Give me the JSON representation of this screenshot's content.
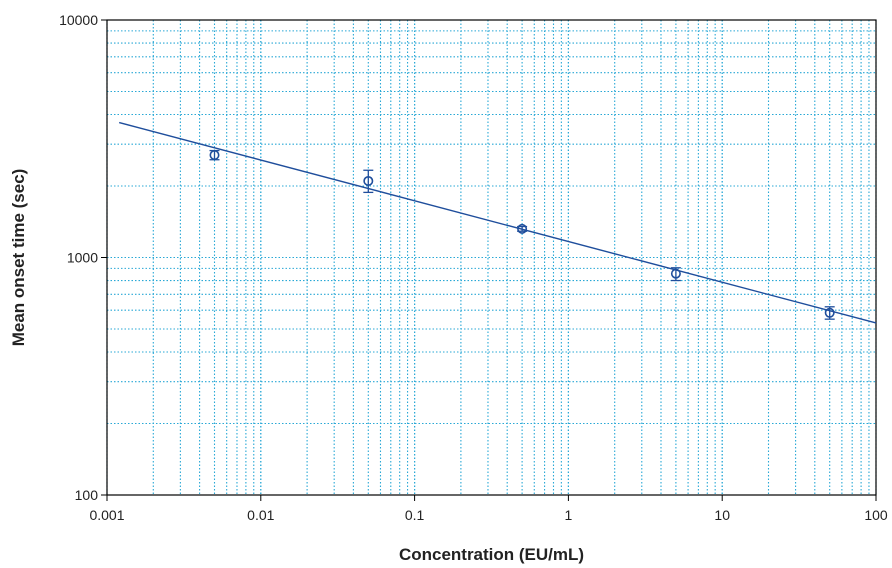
{
  "chart_data": {
    "type": "scatter",
    "title": "",
    "xlabel": "Concentration (EU/mL)",
    "ylabel": "Mean onset time (sec)",
    "x_scale": "log",
    "y_scale": "log",
    "xlim": [
      0.001,
      100
    ],
    "ylim": [
      100,
      10000
    ],
    "grid": true,
    "legend": "none",
    "x_ticks": [
      {
        "value": 0.001,
        "label": "0.001"
      },
      {
        "value": 0.01,
        "label": "0.01"
      },
      {
        "value": 0.1,
        "label": "0.1"
      },
      {
        "value": 1,
        "label": "1"
      },
      {
        "value": 10,
        "label": "10"
      },
      {
        "value": 100,
        "label": "100"
      }
    ],
    "y_ticks": [
      {
        "value": 100,
        "label": "100"
      },
      {
        "value": 1000,
        "label": "1000"
      },
      {
        "value": 10000,
        "label": "10000"
      }
    ],
    "points": [
      {
        "x": 0.005,
        "y": 2700,
        "y_err_low": 2580,
        "y_err_high": 2820
      },
      {
        "x": 0.05,
        "y": 2100,
        "y_err_low": 1880,
        "y_err_high": 2330
      },
      {
        "x": 0.5,
        "y": 1320,
        "y_err_low": 1290,
        "y_err_high": 1350
      },
      {
        "x": 5,
        "y": 855,
        "y_err_low": 800,
        "y_err_high": 905
      },
      {
        "x": 50,
        "y": 585,
        "y_err_low": 550,
        "y_err_high": 620
      }
    ],
    "fit_line": {
      "x": [
        0.0012,
        100
      ],
      "y": [
        3700,
        530
      ]
    },
    "colors": {
      "marker": "#1f4e9c",
      "fit": "#1f4e9c",
      "grid": "#29a8d6",
      "axis": "#000000"
    }
  }
}
